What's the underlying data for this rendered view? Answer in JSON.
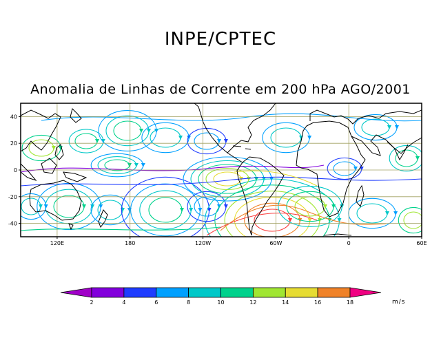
{
  "header": {
    "organization": "INPE/CPTEC",
    "title": "Anomalia de Linhas de Corrente em 200 hPa AGO/2001"
  },
  "map": {
    "projection": "cylindrical",
    "lon_range": [
      90,
      420
    ],
    "lat_range": [
      -50,
      50
    ],
    "lat_ticks": [
      {
        "value": 40,
        "label": "40"
      },
      {
        "value": 20,
        "label": "20"
      },
      {
        "value": 0,
        "label": "0"
      },
      {
        "value": -20,
        "label": "-20"
      },
      {
        "value": -40,
        "label": "-40"
      }
    ],
    "lon_ticks": [
      {
        "value": 120,
        "label": "120E"
      },
      {
        "value": 180,
        "label": "180"
      },
      {
        "value": 240,
        "label": "120W"
      },
      {
        "value": 300,
        "label": "60W"
      },
      {
        "value": 360,
        "label": "0"
      },
      {
        "value": 420,
        "label": "60E"
      }
    ],
    "grid_color": "#a0a060"
  },
  "colorbar": {
    "units": "m/s",
    "labels": [
      "2",
      "4",
      "6",
      "8",
      "10",
      "12",
      "14",
      "16",
      "18"
    ],
    "colors": [
      "#a000c8",
      "#8200dc",
      "#1e3cff",
      "#00a0ff",
      "#00c8c8",
      "#00d28c",
      "#a0e632",
      "#e6dc32",
      "#f08228",
      "#fa3c3c",
      "#f00082"
    ]
  }
}
